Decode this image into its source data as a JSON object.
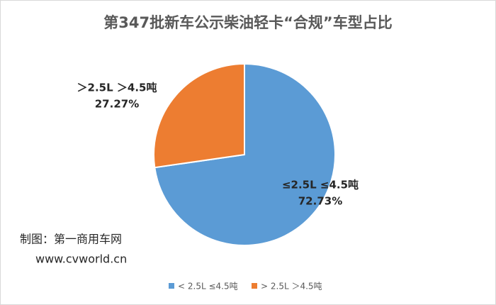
{
  "chart_data": {
    "type": "pie",
    "title": "第347批新车公示柴油轻卡“合规”车型占比",
    "categories": [
      "< 2.5L ≤4.5吨",
      "> 2.5L ＞4.5吨"
    ],
    "slice_labels": [
      "≤2.5L ≤4.5吨",
      "＞2.5L ＞4.5吨"
    ],
    "values": [
      72.73,
      27.27
    ],
    "value_labels": [
      "72.73%",
      "27.27%"
    ],
    "colors": [
      "#5b9bd5",
      "#ed7d31"
    ],
    "legend": "bottom",
    "annotations": [
      "制图：第一商用车网",
      "www.cvworld.cn"
    ]
  }
}
